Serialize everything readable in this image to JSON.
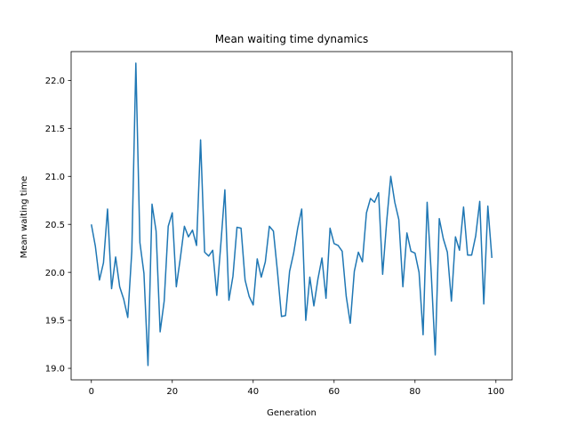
{
  "chart_data": {
    "type": "line",
    "title": "Mean waiting time dynamics",
    "xlabel": "Generation",
    "ylabel": "Mean waiting time",
    "xlim": [
      -5,
      104
    ],
    "ylim": [
      18.88,
      22.3
    ],
    "xticks": [
      0,
      20,
      40,
      60,
      80,
      100
    ],
    "yticks": [
      19.0,
      19.5,
      20.0,
      20.5,
      21.0,
      21.5,
      22.0
    ],
    "ytick_labels": [
      "19.0",
      "19.5",
      "20.0",
      "20.5",
      "21.0",
      "21.5",
      "22.0"
    ],
    "grid": false,
    "legend": "none",
    "series": [
      {
        "color": "#1f77b4",
        "x": [
          0,
          1,
          2,
          3,
          4,
          5,
          6,
          7,
          8,
          9,
          10,
          11,
          12,
          13,
          14,
          15,
          16,
          17,
          18,
          19,
          20,
          21,
          22,
          23,
          24,
          25,
          26,
          27,
          28,
          29,
          30,
          31,
          32,
          33,
          34,
          35,
          36,
          37,
          38,
          39,
          40,
          41,
          42,
          43,
          44,
          45,
          46,
          47,
          48,
          49,
          50,
          51,
          52,
          53,
          54,
          55,
          56,
          57,
          58,
          59,
          60,
          61,
          62,
          63,
          64,
          65,
          66,
          67,
          68,
          69,
          70,
          71,
          72,
          73,
          74,
          75,
          76,
          77,
          78,
          79,
          80,
          81,
          82,
          83,
          84,
          85,
          86,
          87,
          88,
          89,
          90,
          91,
          92,
          93,
          94,
          95,
          96,
          97,
          98,
          99
        ],
        "values": [
          20.5,
          20.27,
          19.92,
          20.1,
          20.66,
          19.83,
          20.16,
          19.85,
          19.72,
          19.53,
          20.22,
          22.18,
          20.31,
          19.99,
          19.03,
          20.71,
          20.43,
          19.38,
          19.7,
          20.48,
          20.62,
          19.85,
          20.15,
          20.48,
          20.37,
          20.44,
          20.28,
          21.38,
          20.21,
          20.17,
          20.23,
          19.76,
          20.29,
          20.86,
          19.71,
          19.96,
          20.47,
          20.46,
          19.92,
          19.75,
          19.66,
          20.14,
          19.95,
          20.11,
          20.48,
          20.43,
          20.01,
          19.54,
          19.55,
          20.01,
          20.2,
          20.46,
          20.66,
          19.5,
          19.95,
          19.65,
          19.93,
          20.15,
          19.73,
          20.46,
          20.3,
          20.28,
          20.22,
          19.75,
          19.47,
          20.01,
          20.21,
          20.11,
          20.62,
          20.77,
          20.73,
          20.83,
          19.98,
          20.53,
          21.0,
          20.73,
          20.55,
          19.85,
          20.41,
          20.22,
          20.2,
          20.0,
          19.35,
          20.73,
          20.0,
          19.14,
          20.56,
          20.35,
          20.21,
          19.7,
          20.37,
          20.23,
          20.68,
          20.18,
          20.18,
          20.38,
          20.74,
          19.67,
          20.69,
          20.15
        ]
      }
    ]
  }
}
